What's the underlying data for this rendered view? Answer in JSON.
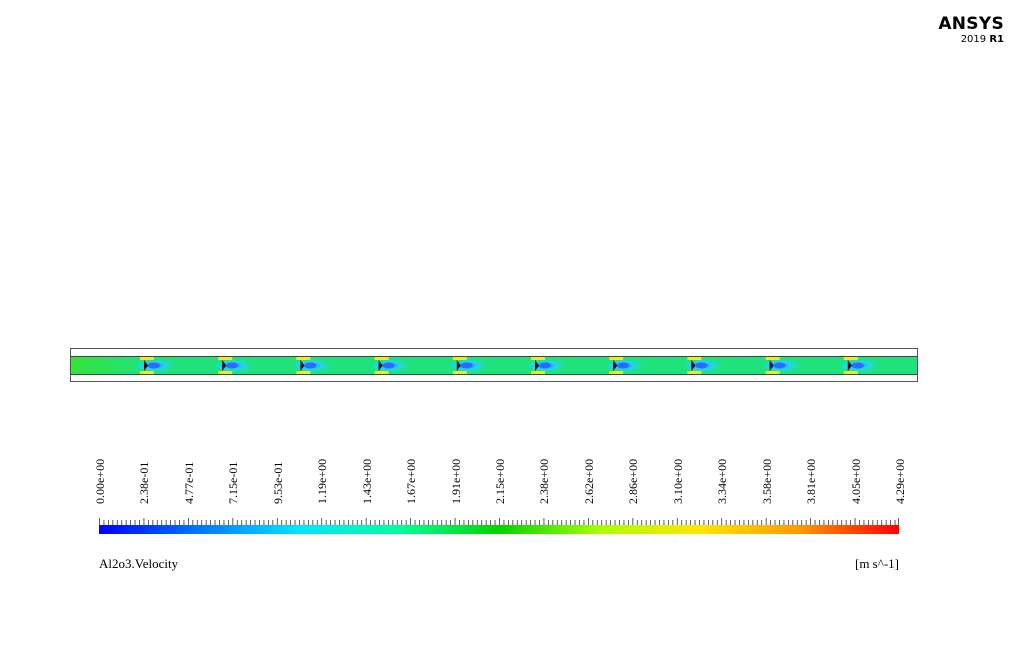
{
  "logo": {
    "name": "ANSYS",
    "version_year": "2019",
    "version_release": "R1"
  },
  "legend": {
    "variable": "Al2o3.Velocity",
    "unit": "[m s^-1]",
    "ticks": [
      "0.00e+00",
      "2.38e-01",
      "4.77e-01",
      "7.15e-01",
      "9.53e-01",
      "1.19e+00",
      "1.43e+00",
      "1.67e+00",
      "1.91e+00",
      "2.15e+00",
      "2.38e+00",
      "2.62e+00",
      "2.86e+00",
      "3.10e+00",
      "3.34e+00",
      "3.58e+00",
      "3.81e+00",
      "4.05e+00",
      "4.29e+00"
    ],
    "min": 0.0,
    "max": 4.29,
    "colors": [
      "#0000ff",
      "#0077ff",
      "#00e5ff",
      "#00ff9c",
      "#00d400",
      "#a6ff00",
      "#ffe600",
      "#ff9900",
      "#ff0000"
    ]
  },
  "contour": {
    "field_color": "#1fe37a",
    "inlet_color": "#2ee33a",
    "obstacle_count": 10
  }
}
